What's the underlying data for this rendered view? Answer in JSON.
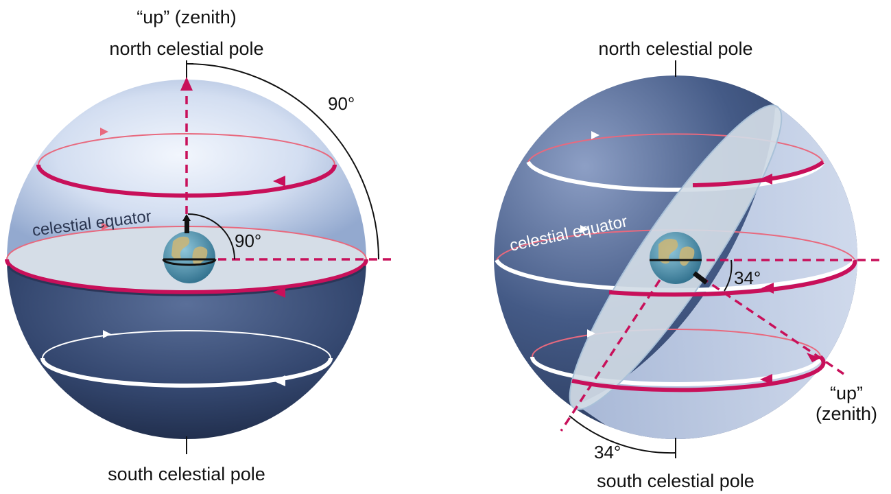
{
  "left": {
    "top_label_1": "“up” (zenith)",
    "top_label_2": "north celestial pole",
    "bottom_label": "south celestial pole",
    "equator_label": "celestial equator",
    "angle_outer": "90°",
    "angle_inner": "90°"
  },
  "right": {
    "top_label": "north celestial pole",
    "bottom_label": "south celestial pole",
    "equator_label": "celestial equator",
    "zenith_label_1": "“up”",
    "zenith_label_2": "(zenith)",
    "angle_inner": "34°",
    "angle_outer": "34°"
  },
  "colors": {
    "magenta": "#c8105a",
    "pink": "#e8697e",
    "sphere_light": "#c9d7ee",
    "sphere_dark": "#2f4168",
    "plane": "#cfd9e4"
  }
}
